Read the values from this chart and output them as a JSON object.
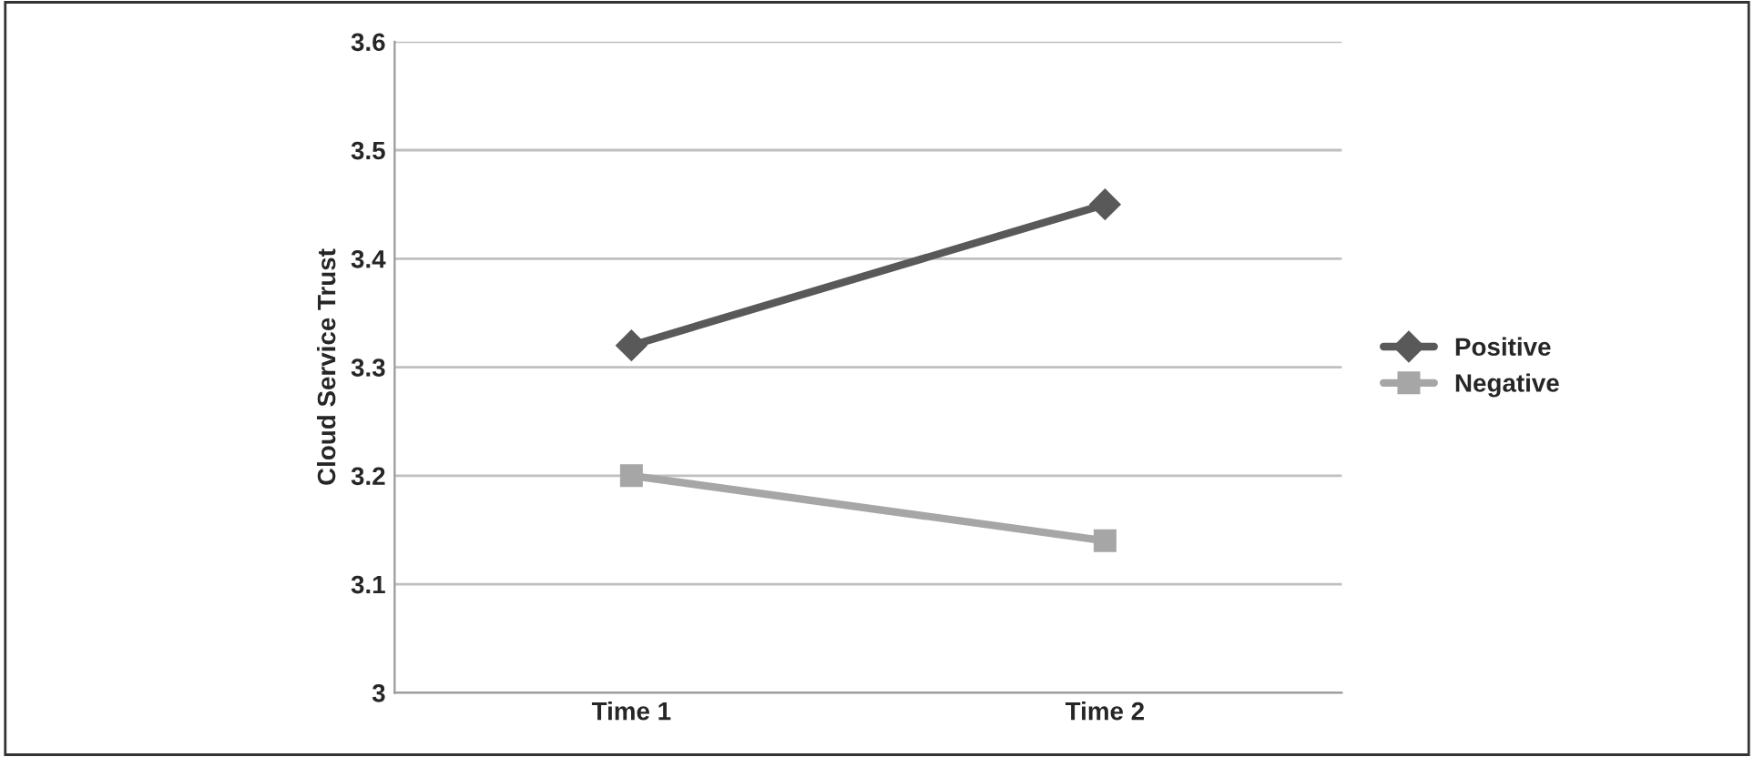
{
  "chart_data": {
    "type": "line",
    "ylabel": "Cloud Service Trust",
    "categories": [
      "Time 1",
      "Time 2"
    ],
    "series": [
      {
        "name": "Positive",
        "color": "#595959",
        "marker": "diamond",
        "values": [
          3.32,
          3.45
        ]
      },
      {
        "name": "Negative",
        "color": "#a6a6a6",
        "marker": "square",
        "values": [
          3.2,
          3.14
        ]
      }
    ],
    "ylim": [
      3,
      3.6
    ],
    "yticks": [
      3,
      3.1,
      3.2,
      3.3,
      3.4,
      3.5,
      3.6
    ],
    "grid": "y",
    "legend": "right",
    "line_style": "solid"
  }
}
